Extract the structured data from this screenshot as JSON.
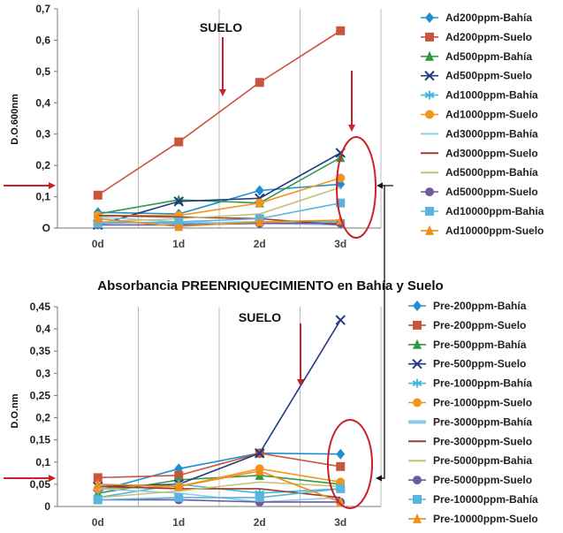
{
  "middle_title": "Absorbancia  PREENRIQUECIMIENTO  en Bahía y Suelo",
  "chart_data": [
    {
      "type": "line",
      "x": [
        "0d",
        "1d",
        "2d",
        "3d"
      ],
      "ylabel": "D.O.600nm",
      "ylim": [
        0,
        0.7
      ],
      "yticks": [
        0,
        0.1,
        0.2,
        0.3,
        0.4,
        0.5,
        0.6,
        0.7
      ],
      "ytick_labels": [
        "O",
        "0,1",
        "0,2",
        "0,3",
        "0,4",
        "0,5",
        "0,6",
        "0,7"
      ],
      "grid": "vertical",
      "legend": "right",
      "annotation": "SUELO",
      "series": [
        {
          "name": "Ad200ppm-Bahía",
          "color": "#1f8fd0",
          "marker": "diamond",
          "values": [
            0.05,
            0.045,
            0.12,
            0.14
          ]
        },
        {
          "name": "Ad200ppm-Suelo",
          "color": "#c8553c",
          "marker": "square",
          "values": [
            0.105,
            0.275,
            0.465,
            0.63
          ]
        },
        {
          "name": "Ad500ppm-Bahía",
          "color": "#2e9a45",
          "marker": "triangle",
          "values": [
            0.045,
            0.09,
            0.08,
            0.225
          ]
        },
        {
          "name": "Ad500ppm-Suelo",
          "color": "#223a80",
          "marker": "x",
          "values": [
            0.01,
            0.085,
            0.095,
            0.24
          ]
        },
        {
          "name": "Ad1000ppm-Bahía",
          "color": "#4ab8d8",
          "marker": "star",
          "values": [
            0.02,
            0.015,
            0.02,
            0.02
          ]
        },
        {
          "name": "Ad1000ppm-Suelo",
          "color": "#f0961e",
          "marker": "circle",
          "values": [
            0.04,
            0.04,
            0.08,
            0.16
          ]
        },
        {
          "name": "Ad3000ppm-Bahía",
          "color": "#8ccbea",
          "marker": "none",
          "values": [
            0.035,
            0.02,
            0.015,
            0.01
          ]
        },
        {
          "name": "Ad3000ppm-Suelo",
          "color": "#9a3c28",
          "marker": "none",
          "values": [
            0.04,
            0.035,
            0.03,
            0.01
          ]
        },
        {
          "name": "Ad5000ppm-Bahía",
          "color": "#c8c078",
          "marker": "none",
          "values": [
            0.02,
            0.03,
            0.045,
            0.13
          ]
        },
        {
          "name": "Ad5000ppm-Suelo",
          "color": "#6e5aa0",
          "marker": "circle",
          "values": [
            0.01,
            0.01,
            0.015,
            0.015
          ]
        },
        {
          "name": "Ad10000ppm-Bahia",
          "color": "#5ab4dc",
          "marker": "square",
          "values": [
            0.015,
            0.02,
            0.03,
            0.08
          ]
        },
        {
          "name": "Ad10000ppm-Suelo",
          "color": "#f08c1e",
          "marker": "triangle",
          "values": [
            0.03,
            0.005,
            0.02,
            0.025
          ]
        }
      ]
    },
    {
      "type": "line",
      "x": [
        "0d",
        "1d",
        "2d",
        "3d"
      ],
      "ylabel": "D.O.nm",
      "ylim": [
        0,
        0.45
      ],
      "yticks": [
        0,
        0.05,
        0.1,
        0.15,
        0.2,
        0.25,
        0.3,
        0.35,
        0.4,
        0.45
      ],
      "ytick_labels": [
        "0",
        "0,05",
        "0,1",
        "0,15",
        "0,2",
        "0,25",
        "0,3",
        "0,35",
        "0,4",
        "0,45"
      ],
      "grid": "vertical",
      "legend": "right",
      "annotation": "SUELO",
      "series": [
        {
          "name": "Pre-200ppm-Bahía",
          "color": "#1f8fd0",
          "marker": "diamond",
          "values": [
            0.035,
            0.085,
            0.12,
            0.118
          ]
        },
        {
          "name": "Pre-200ppm-Suelo",
          "color": "#c8553c",
          "marker": "square",
          "values": [
            0.065,
            0.07,
            0.12,
            0.09
          ]
        },
        {
          "name": "Pre-500ppm-Bahía",
          "color": "#2e9a45",
          "marker": "triangle",
          "values": [
            0.03,
            0.06,
            0.07,
            0.05
          ]
        },
        {
          "name": "Pre-500ppm-Suelo",
          "color": "#223a80",
          "marker": "x",
          "values": [
            0.045,
            0.05,
            0.12,
            0.42
          ]
        },
        {
          "name": "Pre-1000ppm-Bahía",
          "color": "#4ab8d8",
          "marker": "star",
          "values": [
            0.02,
            0.05,
            0.03,
            0.04
          ]
        },
        {
          "name": "Pre-1000ppm-Suelo",
          "color": "#f0961e",
          "marker": "circle",
          "values": [
            0.04,
            0.045,
            0.085,
            0.055
          ]
        },
        {
          "name": "Pre-3000ppm-Bahía",
          "color": "#8ccbea",
          "marker": "none",
          "values": [
            0.04,
            0.03,
            0.01,
            0.02
          ]
        },
        {
          "name": "Pre-3000ppm-Suelo",
          "color": "#9a3c28",
          "marker": "none",
          "values": [
            0.045,
            0.04,
            0.04,
            0.02
          ]
        },
        {
          "name": "Pre-5000ppm-Bahia",
          "color": "#c8c078",
          "marker": "none",
          "values": [
            0.02,
            0.035,
            0.055,
            0.045
          ]
        },
        {
          "name": "Pre-5000ppm-Suelo",
          "color": "#6e5aa0",
          "marker": "circle",
          "values": [
            0.015,
            0.015,
            0.01,
            0.01
          ]
        },
        {
          "name": "Pre-10000ppm-Bahía",
          "color": "#5ab4dc",
          "marker": "square",
          "values": [
            0.015,
            0.02,
            0.02,
            0.04
          ]
        },
        {
          "name": "Pre-10000ppm-Suelo",
          "color": "#f08c1e",
          "marker": "triangle",
          "values": [
            0.05,
            0.045,
            0.08,
            0.01
          ]
        }
      ]
    }
  ]
}
